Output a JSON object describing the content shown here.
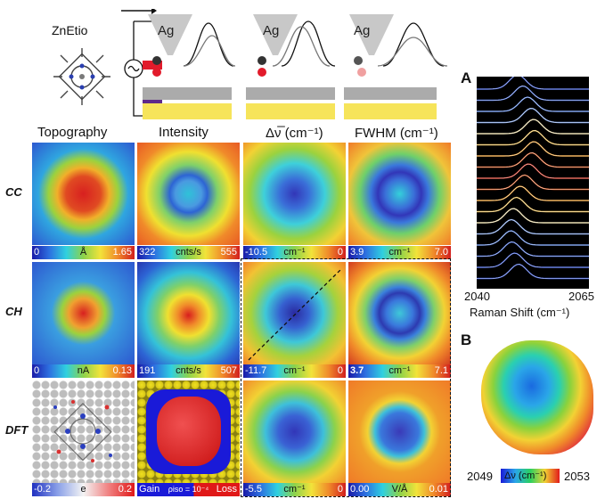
{
  "molecule_label": "ZnEtio",
  "tip_label": "Ag",
  "column_headers": [
    "Topography",
    "Intensity",
    "Δν̅ (cm⁻¹)",
    "FWHM (cm⁻¹)"
  ],
  "rows": [
    {
      "label": "CC",
      "scales": [
        {
          "lo": "0",
          "mid": "Å",
          "hi": "1.65"
        },
        {
          "lo": "322",
          "mid": "cnts/s",
          "hi": "555"
        },
        {
          "lo": "-10.5",
          "mid": "cm⁻¹",
          "hi": "0"
        },
        {
          "lo": "3.9",
          "mid": "cm⁻¹",
          "hi": "7.0"
        }
      ]
    },
    {
      "label": "CH",
      "scales": [
        {
          "lo": "0",
          "mid": "nA",
          "hi": "0.13"
        },
        {
          "lo": "191",
          "mid": "cnts/s",
          "hi": "507"
        },
        {
          "lo": "-11.7",
          "mid": "cm⁻¹",
          "hi": "0"
        },
        {
          "lo": "3.7",
          "mid": "cm⁻¹",
          "hi": "7.1"
        }
      ]
    },
    {
      "label": "DFT",
      "scales": [
        {
          "lo": "-0.2",
          "mid": "e",
          "hi": "0.2"
        },
        {
          "lo": "Gain",
          "mid": "ρiso = 10⁻⁴",
          "hi": "Loss"
        },
        {
          "lo": "-5.5",
          "mid": "cm⁻¹",
          "hi": "0"
        },
        {
          "lo": "0.00",
          "mid": "V/Å",
          "hi": "0.01"
        }
      ]
    }
  ],
  "panel_a": {
    "letter": "A",
    "xlabel": "Raman Shift (cm⁻¹)",
    "ticks": [
      "2040",
      "2065"
    ]
  },
  "panel_b": {
    "letter": "B",
    "scale_lo": "2049",
    "scale_unit": "Δν (cm⁻¹)",
    "scale_hi": "2053"
  },
  "colors": {
    "substrate": "#f6e45a",
    "tip": "#c8c8c8",
    "spectrum_bg": "#000000"
  }
}
